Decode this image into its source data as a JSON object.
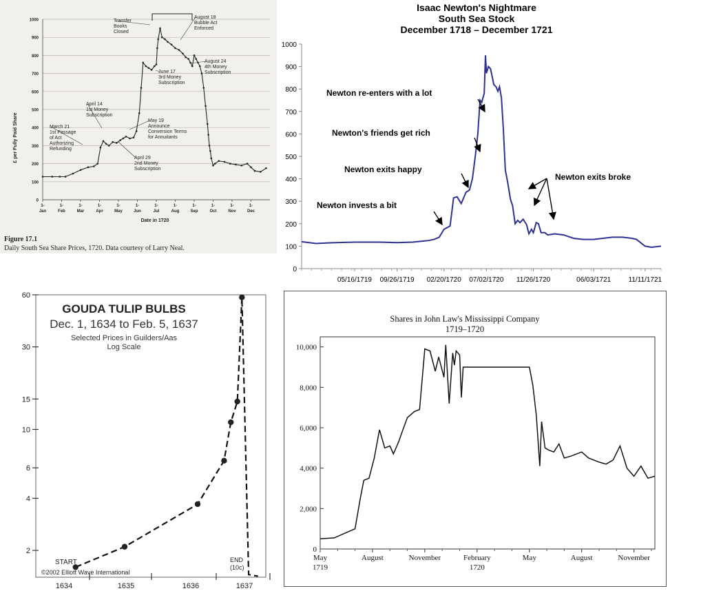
{
  "chart_data": [
    {
      "type": "line",
      "figure_label": "Figure 17.1",
      "caption": "Daily South Sea Share Prices, 1720. Data courtesy of Larry Neal.",
      "xlabel": "Date in 1720",
      "ylabel": "£ per Fully Paid Share",
      "ylim": [
        0,
        1000
      ],
      "yticks": [
        0,
        100,
        200,
        300,
        400,
        500,
        600,
        700,
        800,
        900,
        1000
      ],
      "xticks": [
        "1-\nJan",
        "1-\nFeb",
        "1-\nMar",
        "1-\nApr",
        "1-\nMay",
        "1-\nJun",
        "1-\nJul",
        "1-\nAug",
        "1-\nSep",
        "1-\nOct",
        "1-\nNov",
        "1-\nDec"
      ],
      "grid": true,
      "x": [
        0,
        0.5,
        0.9,
        1.2,
        1.6,
        2.0,
        2.4,
        2.7,
        2.9,
        3.05,
        3.2,
        3.35,
        3.5,
        3.7,
        3.9,
        4.1,
        4.25,
        4.4,
        4.6,
        4.8,
        4.95,
        5.1,
        5.2,
        5.3,
        5.45,
        5.6,
        5.75,
        5.9,
        6.0,
        6.05,
        6.1,
        6.2,
        6.3,
        6.45,
        6.6,
        6.8,
        7.0,
        7.2,
        7.4,
        7.55,
        7.7,
        7.8,
        7.9,
        8.0,
        8.1,
        8.2,
        8.3,
        8.4,
        8.5,
        8.6,
        8.7,
        8.75,
        8.8,
        8.85,
        8.9,
        9.0,
        9.1,
        9.3,
        9.6,
        9.9,
        10.2,
        10.5,
        10.8,
        11.0,
        11.2,
        11.5,
        11.8
      ],
      "y": [
        128,
        128,
        128,
        128,
        145,
        165,
        180,
        185,
        200,
        290,
        325,
        310,
        300,
        320,
        315,
        330,
        340,
        350,
        340,
        345,
        380,
        480,
        620,
        760,
        740,
        730,
        720,
        740,
        750,
        840,
        890,
        950,
        900,
        890,
        875,
        860,
        840,
        830,
        810,
        790,
        780,
        760,
        740,
        800,
        780,
        760,
        740,
        700,
        620,
        520,
        420,
        360,
        300,
        270,
        230,
        190,
        200,
        215,
        210,
        200,
        195,
        190,
        200,
        180,
        160,
        155,
        175
      ],
      "annotations": [
        {
          "text": "Transfer\nBooks\nClosed",
          "x": 6.05,
          "y": 880
        },
        {
          "text": "August 18\nBubble Act\nEnforced",
          "x": 7.6,
          "y": 800
        },
        {
          "text": "August 24\n4th Money\nSubscription",
          "x": 7.8,
          "y": 790
        },
        {
          "text": "June 17\n3rd Money\nSubscription",
          "x": 5.6,
          "y": 740
        },
        {
          "text": "April 14\n1st Money\nSubscription",
          "x": 3.45,
          "y": 330
        },
        {
          "text": "May 19\nAnnounce\nConversion Terms\nfor Annuitants",
          "x": 4.6,
          "y": 345
        },
        {
          "text": "March 21\n1st Passage\nof Act\nAuthorizing\nRefunding",
          "x": 2.7,
          "y": 300
        },
        {
          "text": "April 29\n2nd Money\nSubscription",
          "x": 3.9,
          "y": 320
        }
      ]
    },
    {
      "type": "line",
      "title": "Isaac Newton's Nightmare\nSouth Sea Stock\nDecember 1718 – December 1721",
      "ylim": [
        0,
        1000
      ],
      "yticks": [
        0,
        100,
        200,
        300,
        400,
        500,
        600,
        700,
        800,
        900,
        1000
      ],
      "xlim": [
        "1718-12-01",
        "1721-12-31"
      ],
      "xticks": [
        "05/16/1719",
        "09/26/1719",
        "02/20/1720",
        "07/02/1720",
        "11/26/1720",
        "06/03/1721",
        "11/11/1721"
      ],
      "x": [
        "1718-12-01",
        "1719-01-15",
        "1719-03-01",
        "1719-05-16",
        "1719-08-01",
        "1719-09-26",
        "1719-11-15",
        "1720-01-01",
        "1720-01-20",
        "1720-02-05",
        "1720-02-20",
        "1720-03-10",
        "1720-03-21",
        "1720-04-01",
        "1720-04-14",
        "1720-04-29",
        "1720-05-10",
        "1720-05-19",
        "1720-05-28",
        "1720-06-05",
        "1720-06-12",
        "1720-06-17",
        "1720-06-21",
        "1720-06-25",
        "1720-06-29",
        "1720-07-02",
        "1720-07-08",
        "1720-07-15",
        "1720-07-25",
        "1720-08-01",
        "1720-08-07",
        "1720-08-12",
        "1720-08-18",
        "1720-08-24",
        "1720-08-30",
        "1720-09-07",
        "1720-09-15",
        "1720-09-22",
        "1720-09-30",
        "1720-10-08",
        "1720-10-15",
        "1720-10-25",
        "1720-11-05",
        "1720-11-12",
        "1720-11-20",
        "1720-11-26",
        "1720-12-05",
        "1720-12-12",
        "1720-12-20",
        "1721-01-01",
        "1721-01-10",
        "1721-02-01",
        "1721-03-01",
        "1721-04-01",
        "1721-05-01",
        "1721-06-03",
        "1721-07-01",
        "1721-08-01",
        "1721-09-01",
        "1721-10-01",
        "1721-10-15",
        "1721-11-11",
        "1721-12-01",
        "1721-12-31"
      ],
      "y": [
        120,
        112,
        115,
        118,
        118,
        116,
        118,
        125,
        130,
        140,
        175,
        190,
        315,
        320,
        290,
        340,
        350,
        400,
        500,
        600,
        750,
        740,
        760,
        780,
        950,
        870,
        900,
        890,
        820,
        810,
        790,
        810,
        760,
        620,
        440,
        380,
        310,
        280,
        200,
        215,
        205,
        220,
        195,
        155,
        175,
        160,
        205,
        200,
        160,
        160,
        150,
        155,
        150,
        135,
        130,
        130,
        135,
        140,
        140,
        135,
        130,
        100,
        95,
        100
      ],
      "annotations": [
        {
          "text": "Newton re-enters with a lot"
        },
        {
          "text": "Newton's friends get rich"
        },
        {
          "text": "Newton exits happy"
        },
        {
          "text": "Newton invests a bit"
        },
        {
          "text": "Newton exits broke"
        }
      ]
    },
    {
      "type": "line",
      "title": "GOUDA TULIP BULBS",
      "subtitle": "Dec. 1, 1634 to Feb. 5, 1637",
      "subtitle2": "Selected Prices in Guilders/Aas\nLog Scale",
      "yscale": "log",
      "ylim": [
        1.4,
        60
      ],
      "yticks": [
        2,
        4,
        6,
        10,
        15,
        30,
        60
      ],
      "xticks": [
        "1634",
        "1635",
        "1636",
        "1637"
      ],
      "x": [
        "1634-12-01",
        "1635-07-15",
        "1636-06-15",
        "1636-10-15",
        "1636-11-15",
        "1636-12-15",
        "1637-01-05",
        "1637-02-05",
        "1637-03-20"
      ],
      "y": [
        1.6,
        2.1,
        3.7,
        6.6,
        11,
        14.5,
        58,
        1.45,
        1.42
      ],
      "annotations": [
        {
          "text": "START"
        },
        {
          "text": "END\n(10c)"
        }
      ],
      "copyright": "©2002 Elliott Wave International"
    },
    {
      "type": "line",
      "title": "Shares in John Law's Mississippi Company\n1719–1720",
      "ylim": [
        0,
        10500
      ],
      "yticks": [
        0,
        2000,
        4000,
        6000,
        8000,
        10000
      ],
      "ytick_labels": [
        "0",
        "2,000",
        "4,000",
        "6,000",
        "8,000",
        "10,000"
      ],
      "xticks": [
        "May\n1719",
        "August",
        "November",
        "February\n1720",
        "May",
        "August",
        "November"
      ],
      "x": [
        0,
        0.4,
        1.0,
        1.15,
        1.25,
        1.4,
        1.55,
        1.7,
        1.85,
        2.0,
        2.1,
        2.25,
        2.35,
        2.5,
        2.7,
        2.85,
        3.0,
        3.15,
        3.3,
        3.4,
        3.55,
        3.6,
        3.7,
        3.8,
        3.85,
        3.9,
        4.0,
        4.05,
        4.1,
        4.2,
        4.35,
        4.5,
        4.6,
        4.7,
        4.75,
        4.8,
        5.0,
        5.5,
        6.0,
        6.1,
        6.2,
        6.3,
        6.35,
        6.45,
        6.55,
        6.7,
        6.85,
        7.0,
        7.2,
        7.5,
        7.7,
        8.0,
        8.2,
        8.4,
        8.6,
        8.8,
        9.0,
        9.2,
        9.4,
        9.6
      ],
      "y": [
        500,
        550,
        1000,
        2500,
        3400,
        3500,
        4500,
        5900,
        5000,
        5100,
        4700,
        5300,
        5800,
        6500,
        6800,
        6900,
        9900,
        9800,
        8800,
        9500,
        8500,
        10100,
        7200,
        9700,
        9100,
        9800,
        9600,
        7500,
        9000,
        9000,
        9000,
        9000,
        9000,
        9000,
        9000,
        9000,
        9000,
        9000,
        9000,
        8100,
        6600,
        4100,
        6300,
        5000,
        4900,
        4800,
        5200,
        4500,
        4600,
        4800,
        4500,
        4300,
        4200,
        4400,
        5100,
        4000,
        3600,
        4100,
        3500,
        3600
      ]
    }
  ]
}
